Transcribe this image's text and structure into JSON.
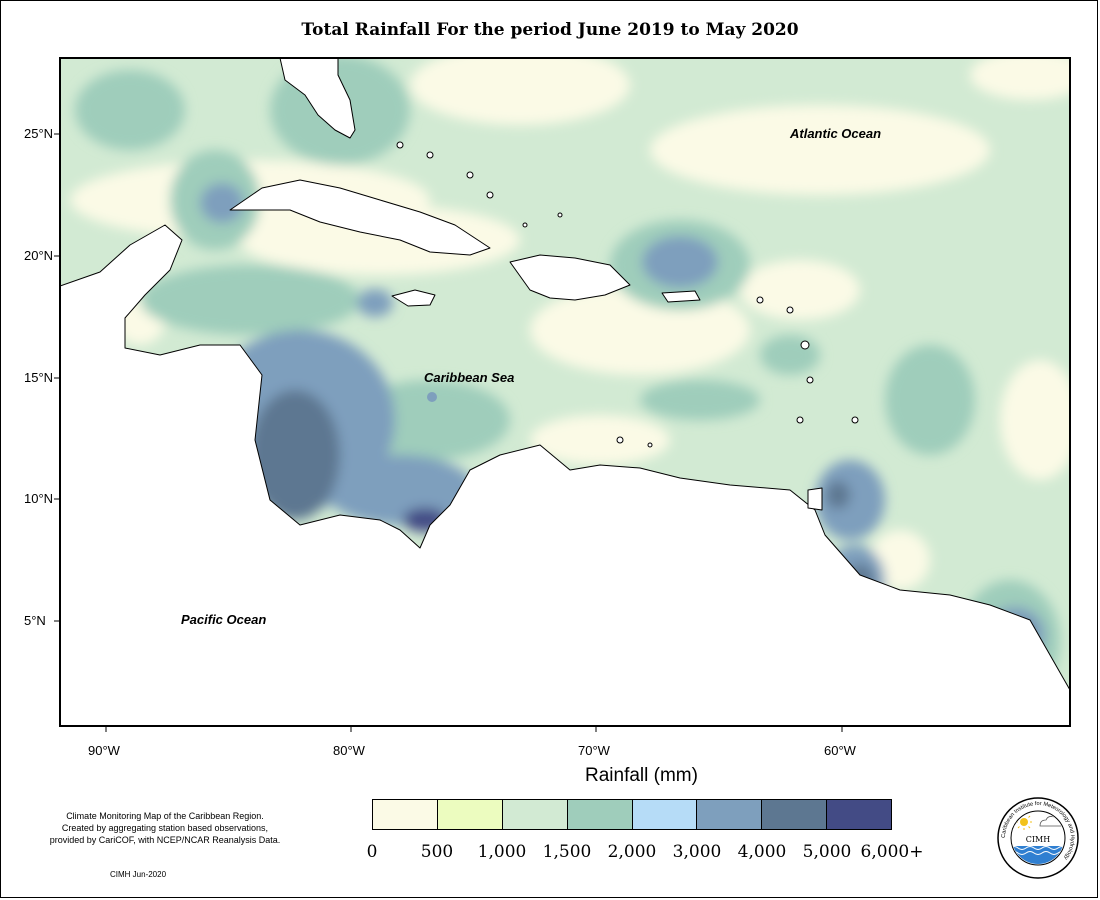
{
  "title": "Total Rainfall For the period June 2019 to May 2020",
  "latitude_labels": [
    "25°N",
    "20°N",
    "15°N",
    "10°N",
    "5°N"
  ],
  "longitude_labels": [
    "90°W",
    "80°W",
    "70°W",
    "60°W"
  ],
  "ocean_labels": {
    "atlantic": "Atlantic Ocean",
    "caribbean": "Caribbean Sea",
    "pacific": "Pacific Ocean"
  },
  "legend": {
    "title": "Rainfall (mm)",
    "colors": [
      "#fbfae6",
      "#ecfcbf",
      "#d2ead3",
      "#9fcdbb",
      "#b6dcf7",
      "#7e9fbd",
      "#5d7791",
      "#434b85"
    ],
    "ticks": [
      "0",
      "500",
      "1,000",
      "1,500",
      "2,000",
      "3,000",
      "4,000",
      "5,000",
      "6,000+"
    ]
  },
  "notes": [
    "Climate Monitoring Map of the Caribbean Region.",
    "Created by aggregating station based observations,",
    "provided by CariCOF, with NCEP/NCAR Reanalysis Data."
  ],
  "credit": "CIMH Jun-2020",
  "logo": {
    "name": "CIMH",
    "ring_text": "Caribbean Institute for Meteorology and Hydrology"
  }
}
